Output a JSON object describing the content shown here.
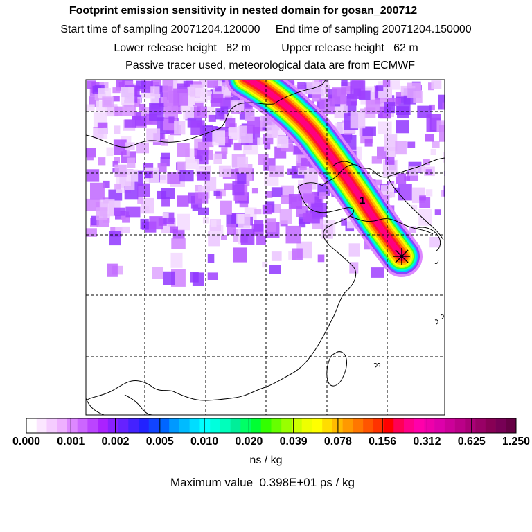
{
  "title": {
    "line1": "Footprint emission sensitivity in nested domain for gosan_200712",
    "line2": "Start time of sampling 20071204.120000     End time of sampling 20071204.150000",
    "line3": "Lower release height   82 m          Upper release height   62 m",
    "line4": "Passive tracer used, meteorological data are from ECMWF"
  },
  "map": {
    "plume_label": "1",
    "receptor_marker": "star-marker",
    "colors": {
      "background_noise": "#c060ff",
      "land_outline": "#000000",
      "gridline": "#000000"
    }
  },
  "colorbar": {
    "tick_labels": [
      "0.000",
      "0.001",
      "0.002",
      "0.005",
      "0.010",
      "0.020",
      "0.039",
      "0.078",
      "0.156",
      "0.312",
      "0.625",
      "1.250"
    ],
    "colors": [
      "#ffffff",
      "#fbe6ff",
      "#f5ccff",
      "#eeb0ff",
      "#dd88ff",
      "#cc66ff",
      "#bb44ff",
      "#aa22ff",
      "#8820ff",
      "#6622ff",
      "#4422ff",
      "#2222ff",
      "#1144ff",
      "#0066ff",
      "#0099ff",
      "#00bbff",
      "#00ddff",
      "#00ffff",
      "#00ffdd",
      "#00ffbb",
      "#00ee99",
      "#00ff66",
      "#00ff33",
      "#33ff00",
      "#66ff00",
      "#99ff00",
      "#ccff00",
      "#eeff00",
      "#ffff00",
      "#ffdd00",
      "#ffbb00",
      "#ff9900",
      "#ff7700",
      "#ff5500",
      "#ff3300",
      "#ff0000",
      "#ff0055",
      "#ff0088",
      "#ff00aa",
      "#ee00aa",
      "#dd00aa",
      "#cc0099",
      "#bb0088",
      "#aa0077",
      "#990066",
      "#880055",
      "#770055",
      "#660044"
    ],
    "units": "ns / kg"
  },
  "footer": {
    "max_value": "Maximum value  0.398E+01 ps / kg"
  }
}
